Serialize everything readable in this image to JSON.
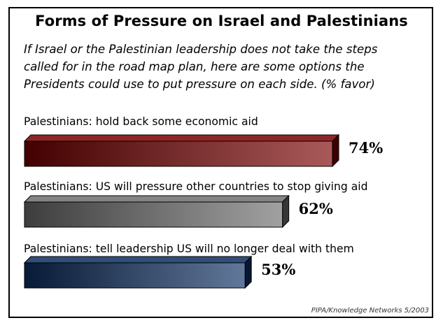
{
  "chart_data": {
    "type": "bar",
    "orientation": "horizontal",
    "title": "Forms of Pressure on Israel and Palestinians",
    "subtitle_lines": [
      "If Israel or the Palestinian leadership does not take the steps",
      "called for in the road map plan, here are some options the",
      "Presidents could use to put pressure on each side. (% favor)"
    ],
    "categories": [
      "Palestinians: hold back some economic aid",
      "Palestinians: US will pressure other countries to stop giving aid",
      "Palestinians: tell leadership US will no longer deal with them"
    ],
    "values": [
      74,
      62,
      53
    ],
    "value_labels": [
      "74%",
      "62%",
      "53%"
    ],
    "bar_colors": [
      "#7a0000",
      "#6e6e6e",
      "#0d2f63"
    ],
    "xlim": [
      0,
      100
    ],
    "grid": false,
    "legend": "none",
    "source": "PIPA/Knowledge Networks 5/2003"
  }
}
